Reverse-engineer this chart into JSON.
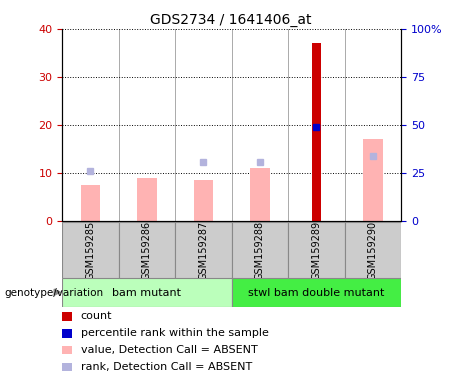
{
  "title": "GDS2734 / 1641406_at",
  "samples": [
    "GSM159285",
    "GSM159286",
    "GSM159287",
    "GSM159288",
    "GSM159289",
    "GSM159290"
  ],
  "count_values": [
    null,
    null,
    null,
    null,
    37.0,
    null
  ],
  "count_color": "#cc0000",
  "percentile_rank_value": 49,
  "percentile_rank_sample_idx": 4,
  "percentile_rank_color": "#0000cc",
  "value_absent": [
    7.5,
    9.0,
    8.5,
    11.0,
    null,
    17.0
  ],
  "value_absent_color": "#ffb3b3",
  "rank_absent": [
    10.3,
    null,
    12.3,
    12.3,
    null,
    13.5
  ],
  "rank_absent_color": "#b3b3dd",
  "ylim_left": [
    0,
    40
  ],
  "ylim_right": [
    0,
    100
  ],
  "yticks_left": [
    0,
    10,
    20,
    30,
    40
  ],
  "yticks_right": [
    0,
    25,
    50,
    75,
    100
  ],
  "yticklabels_right": [
    "0",
    "25",
    "50",
    "75",
    "100%"
  ],
  "group1_label": "bam mutant",
  "group2_label": "stwl bam double mutant",
  "group1_indices": [
    0,
    1,
    2
  ],
  "group2_indices": [
    3,
    4,
    5
  ],
  "group1_color": "#bbffbb",
  "group2_color": "#44ee44",
  "genotype_label": "genotype/variation",
  "pink_bar_width": 0.35,
  "blue_bar_width": 0.08,
  "red_bar_width": 0.15,
  "legend_items": [
    {
      "label": "count",
      "color": "#cc0000"
    },
    {
      "label": "percentile rank within the sample",
      "color": "#0000cc"
    },
    {
      "label": "value, Detection Call = ABSENT",
      "color": "#ffb3b3"
    },
    {
      "label": "rank, Detection Call = ABSENT",
      "color": "#b3b3dd"
    }
  ],
  "left_tick_color": "#cc0000",
  "right_tick_color": "#0000cc",
  "sample_box_color": "#cccccc",
  "plot_bg_color": "#ffffff",
  "title_fontsize": 10,
  "axis_fontsize": 8,
  "legend_fontsize": 8,
  "sample_fontsize": 7
}
